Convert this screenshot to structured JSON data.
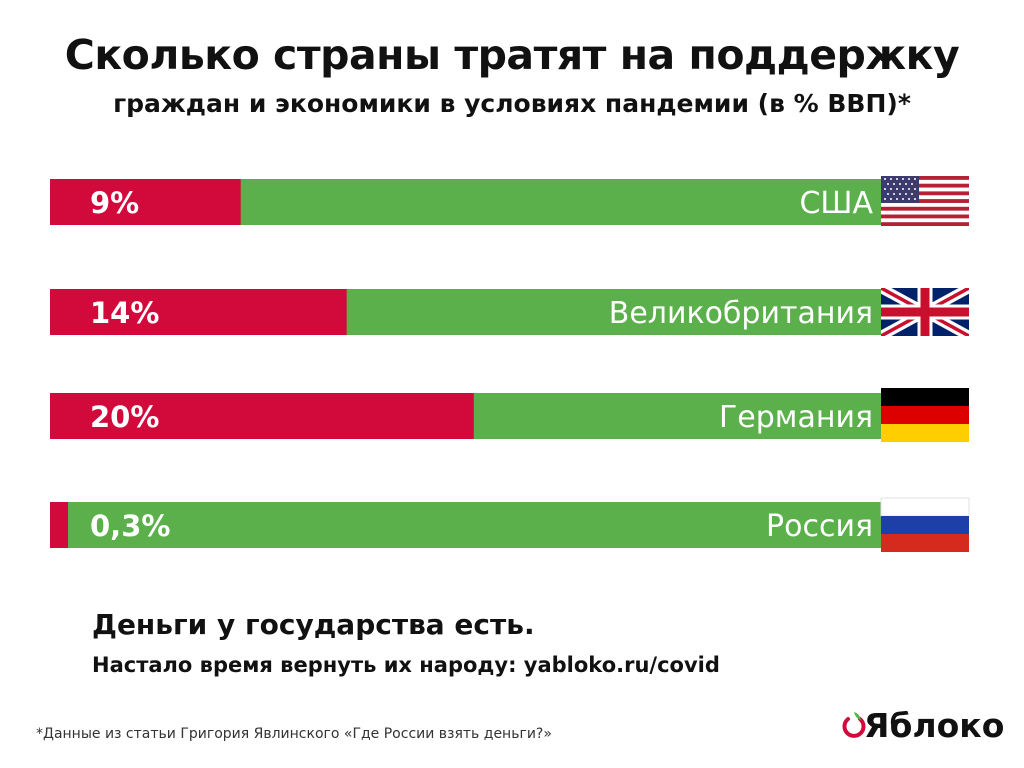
{
  "title": "Сколько страны тратят на поддержку",
  "subtitle": "граждан и экономики в условиях пандемии (в % ВВП)*",
  "colors": {
    "spent": "#d20a3c",
    "rest": "#5bb04b"
  },
  "chart_data": {
    "type": "bar",
    "orientation": "horizontal",
    "stacked": true,
    "xlim": [
      0,
      100
    ],
    "unit": "% ВВП",
    "categories": [
      "США",
      "Великобритания",
      "Германия",
      "Россия"
    ],
    "values": [
      9,
      14,
      20,
      0.3
    ],
    "value_labels": [
      "9%",
      "14%",
      "20%",
      "0,3%"
    ],
    "flags": [
      "usa-flag",
      "uk-flag",
      "germany-flag",
      "russia-flag"
    ]
  },
  "tagline": {
    "line1": "Деньги у государства есть.",
    "line2": "Настало время вернуть их народу: yabloko.ru/covid"
  },
  "footnote": "*Данные из статьи Григория Явлинского «Где России взять деньги?»",
  "logo": {
    "text": "Яблоко",
    "icon": "yabloko-logo-icon"
  }
}
